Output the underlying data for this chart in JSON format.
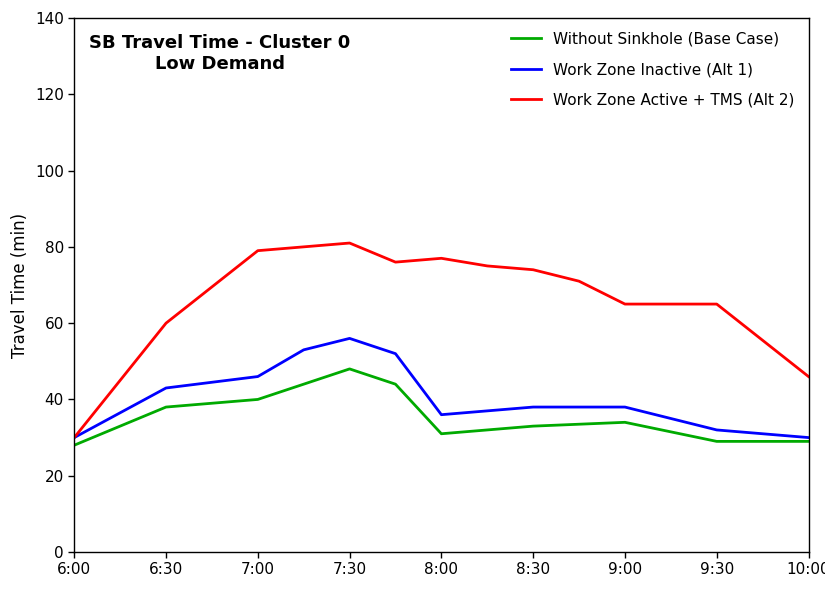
{
  "title_line1": "SB Travel Time - Cluster 0",
  "title_line2": "Low Demand",
  "ylabel": "Travel Time (min)",
  "ylim": [
    0,
    140
  ],
  "yticks": [
    0,
    20,
    40,
    60,
    80,
    100,
    120,
    140
  ],
  "xtick_positions": [
    0,
    30,
    60,
    90,
    120,
    150,
    180,
    210,
    240
  ],
  "xtick_labels": [
    "6:00",
    "6:30",
    "7:00",
    "7:30",
    "8:00",
    "8:30",
    "9:00",
    "9:30",
    "10:00"
  ],
  "series": [
    {
      "label": "Without Sinkhole (Base Case)",
      "color": "#00AA00",
      "linewidth": 2.0,
      "x_values": [
        0,
        30,
        60,
        75,
        90,
        105,
        120,
        150,
        180,
        210,
        240
      ],
      "values": [
        28,
        38,
        40,
        44,
        48,
        44,
        31,
        33,
        34,
        29,
        29
      ]
    },
    {
      "label": "Work Zone Inactive (Alt 1)",
      "color": "#0000FF",
      "linewidth": 2.0,
      "x_values": [
        0,
        30,
        60,
        75,
        90,
        105,
        120,
        150,
        180,
        210,
        240
      ],
      "values": [
        30,
        43,
        46,
        53,
        56,
        52,
        36,
        38,
        38,
        32,
        30
      ]
    },
    {
      "label": "Work Zone Active + TMS (Alt 2)",
      "color": "#FF0000",
      "linewidth": 2.0,
      "x_values": [
        0,
        30,
        60,
        75,
        90,
        105,
        120,
        135,
        150,
        165,
        180,
        210,
        240
      ],
      "values": [
        30,
        60,
        79,
        80,
        81,
        76,
        77,
        75,
        74,
        71,
        65,
        65,
        46
      ]
    }
  ],
  "background_color": "#FFFFFF",
  "border_color": "#000000",
  "title_fontsize": 13,
  "ylabel_fontsize": 12,
  "tick_labelsize": 11,
  "legend_fontsize": 11
}
